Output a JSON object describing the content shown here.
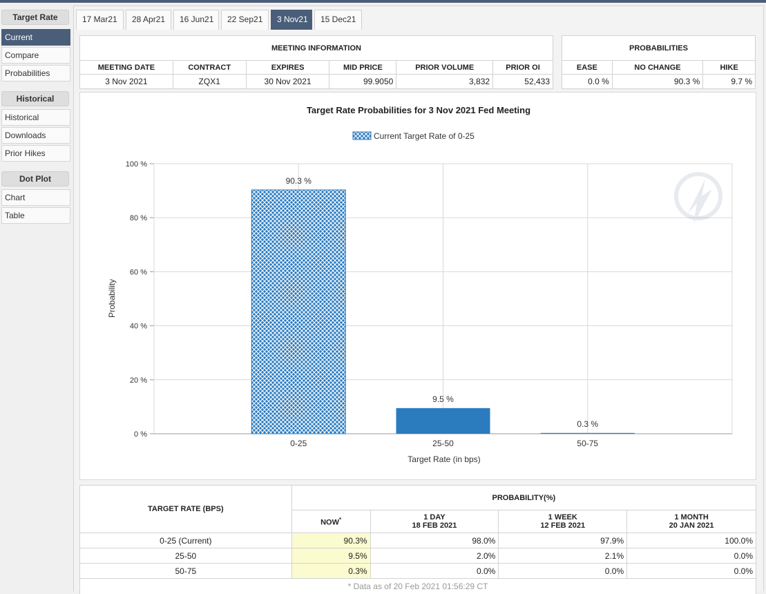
{
  "sidebar": {
    "sections": [
      {
        "heading": "Target Rate",
        "items": [
          {
            "label": "Current",
            "active": true
          },
          {
            "label": "Compare",
            "active": false
          },
          {
            "label": "Probabilities",
            "active": false
          }
        ]
      },
      {
        "heading": "Historical",
        "items": [
          {
            "label": "Historical",
            "active": false
          },
          {
            "label": "Downloads",
            "active": false
          },
          {
            "label": "Prior Hikes",
            "active": false
          }
        ]
      },
      {
        "heading": "Dot Plot",
        "items": [
          {
            "label": "Chart",
            "active": false
          },
          {
            "label": "Table",
            "active": false
          }
        ]
      }
    ]
  },
  "tabs": [
    {
      "label": "17 Mar21",
      "active": false
    },
    {
      "label": "28 Apr21",
      "active": false
    },
    {
      "label": "16 Jun21",
      "active": false
    },
    {
      "label": "22 Sep21",
      "active": false
    },
    {
      "label": "3 Nov21",
      "active": true
    },
    {
      "label": "15 Dec21",
      "active": false
    }
  ],
  "meeting_info": {
    "heading": "MEETING INFORMATION",
    "columns": [
      "MEETING DATE",
      "CONTRACT",
      "EXPIRES",
      "MID PRICE",
      "PRIOR VOLUME",
      "PRIOR OI"
    ],
    "values": [
      "3 Nov 2021",
      "ZQX1",
      "30 Nov 2021",
      "99.9050",
      "3,832",
      "52,433"
    ]
  },
  "probabilities": {
    "heading": "PROBABILITIES",
    "columns": [
      "EASE",
      "NO CHANGE",
      "HIKE"
    ],
    "values": [
      "0.0 %",
      "90.3 %",
      "9.7 %"
    ]
  },
  "chart_data": {
    "type": "bar",
    "title": "Target Rate Probabilities for 3 Nov 2021 Fed Meeting",
    "legend": "Current Target Rate of 0-25",
    "xlabel": "Target Rate (in bps)",
    "ylabel": "Probability",
    "categories": [
      "0-25",
      "25-50",
      "50-75"
    ],
    "values": [
      90.3,
      9.5,
      0.3
    ],
    "value_labels": [
      "90.3 %",
      "9.5 %",
      "0.3 %"
    ],
    "current_index": 0,
    "ylim": [
      0,
      100
    ],
    "yticks": [
      0,
      20,
      40,
      60,
      80,
      100
    ],
    "ytick_labels": [
      "0 %",
      "20 %",
      "40 %",
      "60 %",
      "80 %",
      "100 %"
    ],
    "grid": true,
    "colors": {
      "bar": "#2b7bbf",
      "bar_light": "#a9cbe8",
      "grid": "#d8d8d8"
    }
  },
  "history": {
    "row_header": "TARGET RATE (BPS)",
    "group_header": "PROBABILITY(%)",
    "columns": [
      {
        "line1": "NOW",
        "line2": "",
        "sup": "*"
      },
      {
        "line1": "1 DAY",
        "line2": "18 FEB 2021",
        "sup": ""
      },
      {
        "line1": "1 WEEK",
        "line2": "12 FEB 2021",
        "sup": ""
      },
      {
        "line1": "1 MONTH",
        "line2": "20 JAN 2021",
        "sup": ""
      }
    ],
    "rows": [
      {
        "rate": "0-25 (Current)",
        "values": [
          "90.3%",
          "98.0%",
          "97.9%",
          "100.0%"
        ]
      },
      {
        "rate": "25-50",
        "values": [
          "9.5%",
          "2.0%",
          "2.1%",
          "0.0%"
        ]
      },
      {
        "rate": "50-75",
        "values": [
          "0.3%",
          "0.0%",
          "0.0%",
          "0.0%"
        ]
      }
    ],
    "footnote": "* Data as of 20 Feb 2021 01:56:29 CT"
  }
}
